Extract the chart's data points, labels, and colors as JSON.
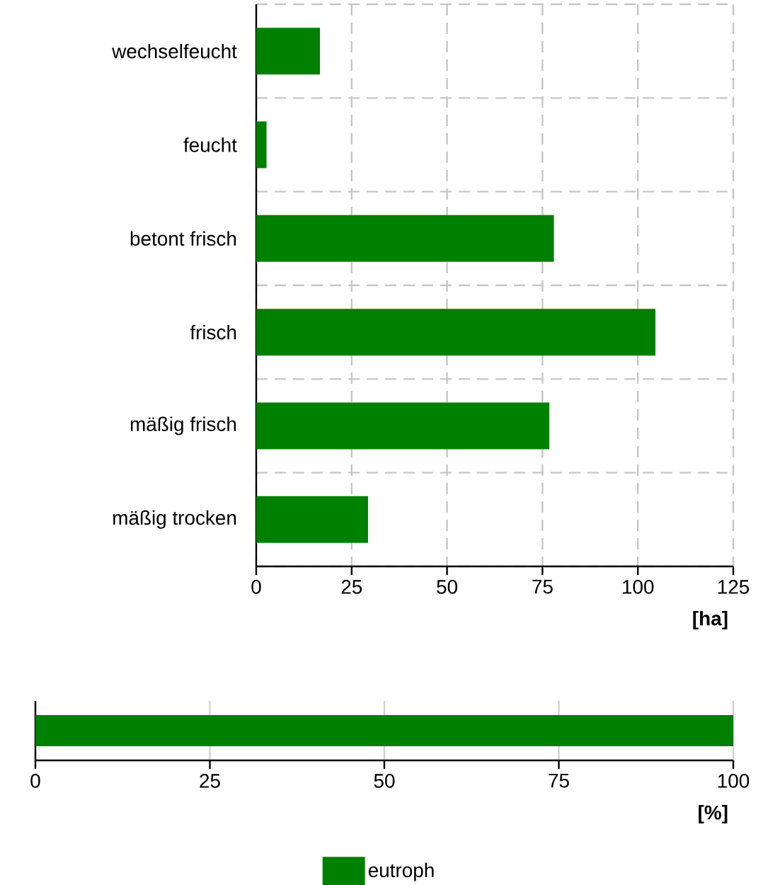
{
  "chart_data": [
    {
      "type": "bar",
      "orientation": "horizontal",
      "categories": [
        "wechselfeucht",
        "feucht",
        "betont frisch",
        "frisch",
        "mäßig frisch",
        "mäßig trocken"
      ],
      "values": [
        16.7,
        2.7,
        78,
        104.6,
        76.8,
        29.3
      ],
      "color": "#008000",
      "xlim": [
        0,
        125
      ],
      "xticks": [
        0,
        25,
        50,
        75,
        100,
        125
      ],
      "xlabel": "[ha]",
      "grid": true
    },
    {
      "type": "bar",
      "orientation": "horizontal",
      "categories": [
        null
      ],
      "series": [
        {
          "name": "eutroph",
          "color": "#008000",
          "values": [
            100
          ]
        }
      ],
      "xlim": [
        0,
        100
      ],
      "xticks": [
        0,
        25,
        50,
        75,
        100
      ],
      "xlabel": "[%]",
      "grid": "x",
      "legend": "bottom"
    }
  ]
}
